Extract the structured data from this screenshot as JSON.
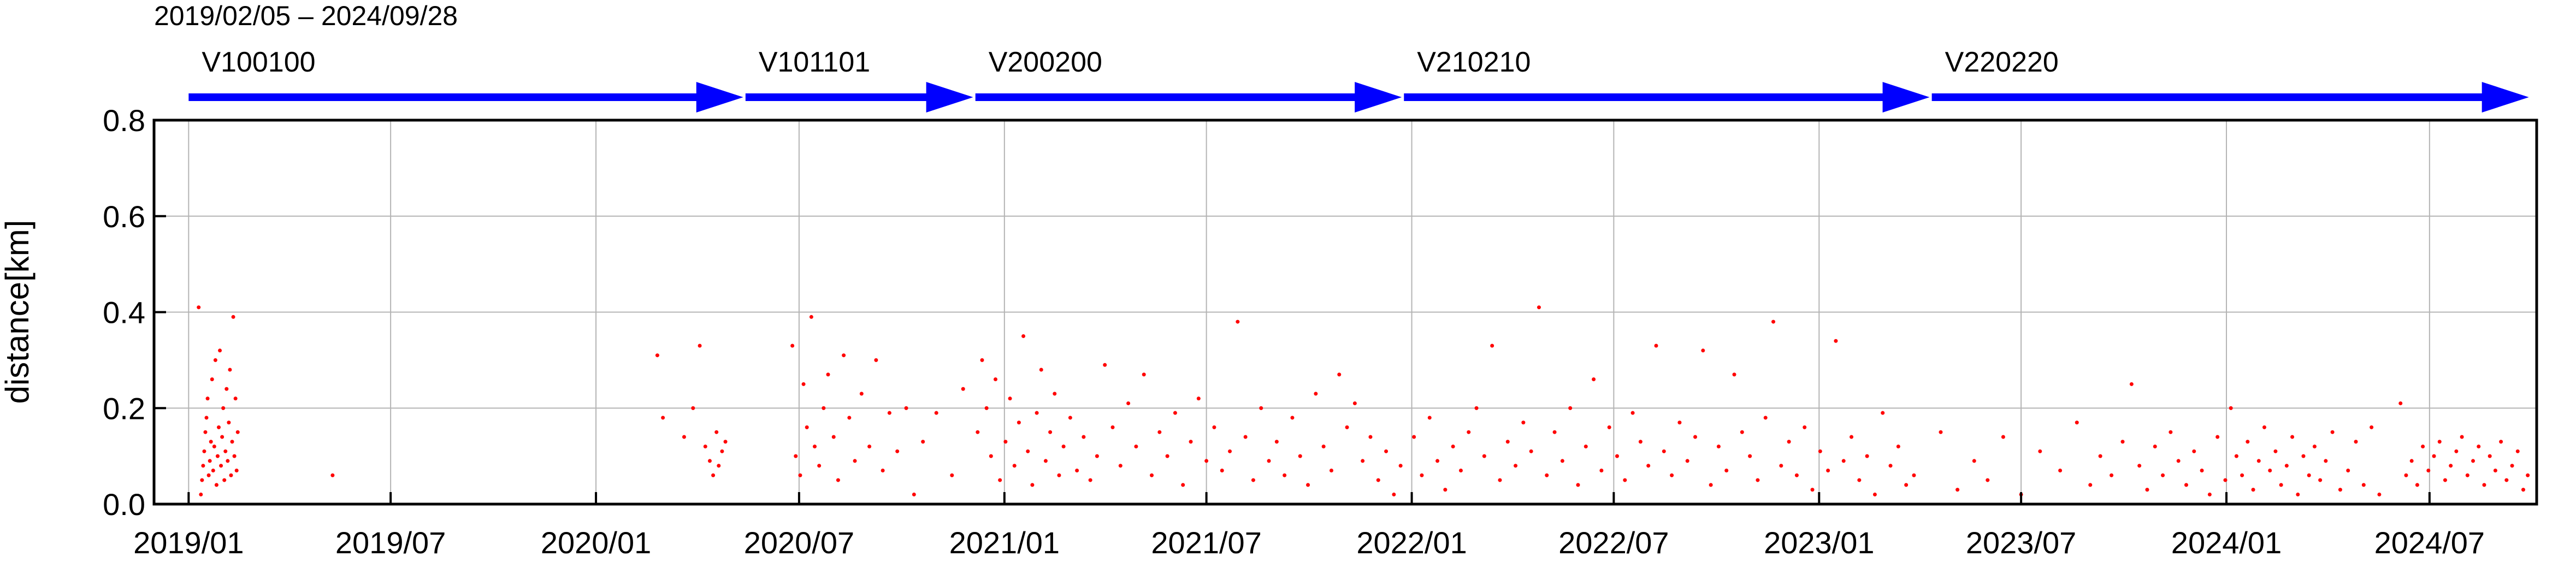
{
  "header": {
    "period": "2019/02/05 – 2024/09/28"
  },
  "colors": {
    "points": "#ff0000",
    "arrows": "#0000ff",
    "grid": "#b4b4b4",
    "frame": "#000000"
  },
  "chart_data": {
    "type": "scatter",
    "ylabel": "distance[km]",
    "xlabel": "",
    "ylim": [
      0.0,
      0.8
    ],
    "xlim": [
      "2018-12-01",
      "2024-10-05"
    ],
    "grid": true,
    "yticks": [
      "0.0",
      "0.2",
      "0.4",
      "0.6",
      "0.8"
    ],
    "xticks": [
      {
        "date": "2019-01-01",
        "label": "2019/01"
      },
      {
        "date": "2019-07-01",
        "label": "2019/07"
      },
      {
        "date": "2020-01-01",
        "label": "2020/01"
      },
      {
        "date": "2020-07-01",
        "label": "2020/07"
      },
      {
        "date": "2021-01-01",
        "label": "2021/01"
      },
      {
        "date": "2021-07-01",
        "label": "2021/07"
      },
      {
        "date": "2022-01-01",
        "label": "2022/01"
      },
      {
        "date": "2022-07-01",
        "label": "2022/07"
      },
      {
        "date": "2023-01-01",
        "label": "2023/01"
      },
      {
        "date": "2023-07-01",
        "label": "2023/07"
      },
      {
        "date": "2024-01-01",
        "label": "2024/01"
      },
      {
        "date": "2024-07-01",
        "label": "2024/07"
      }
    ],
    "versions": [
      {
        "label": "V100100",
        "start": "2019-01-01",
        "end": "2020-05-12"
      },
      {
        "label": "V101101",
        "start": "2020-05-14",
        "end": "2020-12-04"
      },
      {
        "label": "V200200",
        "start": "2020-12-06",
        "end": "2021-12-23"
      },
      {
        "label": "V210210",
        "start": "2021-12-25",
        "end": "2023-04-10"
      },
      {
        "label": "V220220",
        "start": "2023-04-12",
        "end": "2024-09-28"
      }
    ],
    "points": [
      {
        "x": "2019-01-10",
        "y": 0.41
      },
      {
        "x": "2019-01-12",
        "y": 0.02
      },
      {
        "x": "2019-01-13",
        "y": 0.05
      },
      {
        "x": "2019-01-14",
        "y": 0.08
      },
      {
        "x": "2019-01-15",
        "y": 0.11
      },
      {
        "x": "2019-01-16",
        "y": 0.15
      },
      {
        "x": "2019-01-17",
        "y": 0.18
      },
      {
        "x": "2019-01-18",
        "y": 0.22
      },
      {
        "x": "2019-01-19",
        "y": 0.06
      },
      {
        "x": "2019-01-20",
        "y": 0.09
      },
      {
        "x": "2019-01-21",
        "y": 0.13
      },
      {
        "x": "2019-01-22",
        "y": 0.26
      },
      {
        "x": "2019-01-23",
        "y": 0.07
      },
      {
        "x": "2019-01-24",
        "y": 0.12
      },
      {
        "x": "2019-01-25",
        "y": 0.3
      },
      {
        "x": "2019-01-26",
        "y": 0.04
      },
      {
        "x": "2019-01-27",
        "y": 0.1
      },
      {
        "x": "2019-01-28",
        "y": 0.16
      },
      {
        "x": "2019-01-29",
        "y": 0.32
      },
      {
        "x": "2019-01-30",
        "y": 0.08
      },
      {
        "x": "2019-01-31",
        "y": 0.14
      },
      {
        "x": "2019-02-01",
        "y": 0.2
      },
      {
        "x": "2019-02-02",
        "y": 0.05
      },
      {
        "x": "2019-02-03",
        "y": 0.11
      },
      {
        "x": "2019-02-04",
        "y": 0.24
      },
      {
        "x": "2019-02-05",
        "y": 0.09
      },
      {
        "x": "2019-02-06",
        "y": 0.17
      },
      {
        "x": "2019-02-07",
        "y": 0.28
      },
      {
        "x": "2019-02-08",
        "y": 0.06
      },
      {
        "x": "2019-02-09",
        "y": 0.13
      },
      {
        "x": "2019-02-10",
        "y": 0.39
      },
      {
        "x": "2019-02-11",
        "y": 0.1
      },
      {
        "x": "2019-02-12",
        "y": 0.22
      },
      {
        "x": "2019-02-13",
        "y": 0.07
      },
      {
        "x": "2019-02-14",
        "y": 0.15
      },
      {
        "x": "2019-05-10",
        "y": 0.06
      },
      {
        "x": "2020-02-25",
        "y": 0.31
      },
      {
        "x": "2020-03-01",
        "y": 0.18
      },
      {
        "x": "2020-03-20",
        "y": 0.14
      },
      {
        "x": "2020-03-28",
        "y": 0.2
      },
      {
        "x": "2020-04-03",
        "y": 0.33
      },
      {
        "x": "2020-04-08",
        "y": 0.12
      },
      {
        "x": "2020-04-12",
        "y": 0.09
      },
      {
        "x": "2020-04-15",
        "y": 0.06
      },
      {
        "x": "2020-04-18",
        "y": 0.15
      },
      {
        "x": "2020-04-20",
        "y": 0.08
      },
      {
        "x": "2020-04-23",
        "y": 0.11
      },
      {
        "x": "2020-04-26",
        "y": 0.13
      },
      {
        "x": "2020-06-25",
        "y": 0.33
      },
      {
        "x": "2020-06-28",
        "y": 0.1
      },
      {
        "x": "2020-07-02",
        "y": 0.06
      },
      {
        "x": "2020-07-05",
        "y": 0.25
      },
      {
        "x": "2020-07-08",
        "y": 0.16
      },
      {
        "x": "2020-07-12",
        "y": 0.39
      },
      {
        "x": "2020-07-15",
        "y": 0.12
      },
      {
        "x": "2020-07-19",
        "y": 0.08
      },
      {
        "x": "2020-07-23",
        "y": 0.2
      },
      {
        "x": "2020-07-27",
        "y": 0.27
      },
      {
        "x": "2020-08-01",
        "y": 0.14
      },
      {
        "x": "2020-08-05",
        "y": 0.05
      },
      {
        "x": "2020-08-10",
        "y": 0.31
      },
      {
        "x": "2020-08-15",
        "y": 0.18
      },
      {
        "x": "2020-08-20",
        "y": 0.09
      },
      {
        "x": "2020-08-26",
        "y": 0.23
      },
      {
        "x": "2020-09-02",
        "y": 0.12
      },
      {
        "x": "2020-09-08",
        "y": 0.3
      },
      {
        "x": "2020-09-14",
        "y": 0.07
      },
      {
        "x": "2020-09-20",
        "y": 0.19
      },
      {
        "x": "2020-09-27",
        "y": 0.11
      },
      {
        "x": "2020-10-05",
        "y": 0.2
      },
      {
        "x": "2020-10-12",
        "y": 0.02
      },
      {
        "x": "2020-10-20",
        "y": 0.13
      },
      {
        "x": "2020-11-01",
        "y": 0.19
      },
      {
        "x": "2020-11-15",
        "y": 0.06
      },
      {
        "x": "2020-11-25",
        "y": 0.24
      },
      {
        "x": "2020-12-08",
        "y": 0.15
      },
      {
        "x": "2020-12-12",
        "y": 0.3
      },
      {
        "x": "2020-12-16",
        "y": 0.2
      },
      {
        "x": "2020-12-20",
        "y": 0.1
      },
      {
        "x": "2020-12-24",
        "y": 0.26
      },
      {
        "x": "2020-12-28",
        "y": 0.05
      },
      {
        "x": "2021-01-02",
        "y": 0.13
      },
      {
        "x": "2021-01-06",
        "y": 0.22
      },
      {
        "x": "2021-01-10",
        "y": 0.08
      },
      {
        "x": "2021-01-14",
        "y": 0.17
      },
      {
        "x": "2021-01-18",
        "y": 0.35
      },
      {
        "x": "2021-01-22",
        "y": 0.11
      },
      {
        "x": "2021-01-26",
        "y": 0.04
      },
      {
        "x": "2021-01-30",
        "y": 0.19
      },
      {
        "x": "2021-02-03",
        "y": 0.28
      },
      {
        "x": "2021-02-07",
        "y": 0.09
      },
      {
        "x": "2021-02-11",
        "y": 0.15
      },
      {
        "x": "2021-02-15",
        "y": 0.23
      },
      {
        "x": "2021-02-19",
        "y": 0.06
      },
      {
        "x": "2021-02-23",
        "y": 0.12
      },
      {
        "x": "2021-03-01",
        "y": 0.18
      },
      {
        "x": "2021-03-07",
        "y": 0.07
      },
      {
        "x": "2021-03-13",
        "y": 0.14
      },
      {
        "x": "2021-03-19",
        "y": 0.05
      },
      {
        "x": "2021-03-25",
        "y": 0.1
      },
      {
        "x": "2021-04-01",
        "y": 0.29
      },
      {
        "x": "2021-04-08",
        "y": 0.16
      },
      {
        "x": "2021-04-15",
        "y": 0.08
      },
      {
        "x": "2021-04-22",
        "y": 0.21
      },
      {
        "x": "2021-04-29",
        "y": 0.12
      },
      {
        "x": "2021-05-06",
        "y": 0.27
      },
      {
        "x": "2021-05-13",
        "y": 0.06
      },
      {
        "x": "2021-05-20",
        "y": 0.15
      },
      {
        "x": "2021-05-27",
        "y": 0.1
      },
      {
        "x": "2021-06-03",
        "y": 0.19
      },
      {
        "x": "2021-06-10",
        "y": 0.04
      },
      {
        "x": "2021-06-17",
        "y": 0.13
      },
      {
        "x": "2021-06-24",
        "y": 0.22
      },
      {
        "x": "2021-07-01",
        "y": 0.09
      },
      {
        "x": "2021-07-08",
        "y": 0.16
      },
      {
        "x": "2021-07-15",
        "y": 0.07
      },
      {
        "x": "2021-07-22",
        "y": 0.11
      },
      {
        "x": "2021-07-29",
        "y": 0.38
      },
      {
        "x": "2021-08-05",
        "y": 0.14
      },
      {
        "x": "2021-08-12",
        "y": 0.05
      },
      {
        "x": "2021-08-19",
        "y": 0.2
      },
      {
        "x": "2021-08-26",
        "y": 0.09
      },
      {
        "x": "2021-09-02",
        "y": 0.13
      },
      {
        "x": "2021-09-09",
        "y": 0.06
      },
      {
        "x": "2021-09-16",
        "y": 0.18
      },
      {
        "x": "2021-09-23",
        "y": 0.1
      },
      {
        "x": "2021-09-30",
        "y": 0.04
      },
      {
        "x": "2021-10-07",
        "y": 0.23
      },
      {
        "x": "2021-10-14",
        "y": 0.12
      },
      {
        "x": "2021-10-21",
        "y": 0.07
      },
      {
        "x": "2021-10-28",
        "y": 0.27
      },
      {
        "x": "2021-11-04",
        "y": 0.16
      },
      {
        "x": "2021-11-11",
        "y": 0.21
      },
      {
        "x": "2021-11-18",
        "y": 0.09
      },
      {
        "x": "2021-11-25",
        "y": 0.14
      },
      {
        "x": "2021-12-02",
        "y": 0.05
      },
      {
        "x": "2021-12-09",
        "y": 0.11
      },
      {
        "x": "2021-12-16",
        "y": 0.02
      },
      {
        "x": "2021-12-22",
        "y": 0.08
      },
      {
        "x": "2022-01-03",
        "y": 0.14
      },
      {
        "x": "2022-01-10",
        "y": 0.06
      },
      {
        "x": "2022-01-17",
        "y": 0.18
      },
      {
        "x": "2022-01-24",
        "y": 0.09
      },
      {
        "x": "2022-01-31",
        "y": 0.03
      },
      {
        "x": "2022-02-07",
        "y": 0.12
      },
      {
        "x": "2022-02-14",
        "y": 0.07
      },
      {
        "x": "2022-02-21",
        "y": 0.15
      },
      {
        "x": "2022-02-28",
        "y": 0.2
      },
      {
        "x": "2022-03-07",
        "y": 0.1
      },
      {
        "x": "2022-03-14",
        "y": 0.33
      },
      {
        "x": "2022-03-21",
        "y": 0.05
      },
      {
        "x": "2022-03-28",
        "y": 0.13
      },
      {
        "x": "2022-04-04",
        "y": 0.08
      },
      {
        "x": "2022-04-11",
        "y": 0.17
      },
      {
        "x": "2022-04-18",
        "y": 0.11
      },
      {
        "x": "2022-04-25",
        "y": 0.41
      },
      {
        "x": "2022-05-02",
        "y": 0.06
      },
      {
        "x": "2022-05-09",
        "y": 0.15
      },
      {
        "x": "2022-05-16",
        "y": 0.09
      },
      {
        "x": "2022-05-23",
        "y": 0.2
      },
      {
        "x": "2022-05-30",
        "y": 0.04
      },
      {
        "x": "2022-06-06",
        "y": 0.12
      },
      {
        "x": "2022-06-13",
        "y": 0.26
      },
      {
        "x": "2022-06-20",
        "y": 0.07
      },
      {
        "x": "2022-06-27",
        "y": 0.16
      },
      {
        "x": "2022-07-04",
        "y": 0.1
      },
      {
        "x": "2022-07-11",
        "y": 0.05
      },
      {
        "x": "2022-07-18",
        "y": 0.19
      },
      {
        "x": "2022-07-25",
        "y": 0.13
      },
      {
        "x": "2022-08-01",
        "y": 0.08
      },
      {
        "x": "2022-08-08",
        "y": 0.33
      },
      {
        "x": "2022-08-15",
        "y": 0.11
      },
      {
        "x": "2022-08-22",
        "y": 0.06
      },
      {
        "x": "2022-08-29",
        "y": 0.17
      },
      {
        "x": "2022-09-05",
        "y": 0.09
      },
      {
        "x": "2022-09-12",
        "y": 0.14
      },
      {
        "x": "2022-09-19",
        "y": 0.32
      },
      {
        "x": "2022-09-26",
        "y": 0.04
      },
      {
        "x": "2022-10-03",
        "y": 0.12
      },
      {
        "x": "2022-10-10",
        "y": 0.07
      },
      {
        "x": "2022-10-17",
        "y": 0.27
      },
      {
        "x": "2022-10-24",
        "y": 0.15
      },
      {
        "x": "2022-10-31",
        "y": 0.1
      },
      {
        "x": "2022-11-07",
        "y": 0.05
      },
      {
        "x": "2022-11-14",
        "y": 0.18
      },
      {
        "x": "2022-11-21",
        "y": 0.38
      },
      {
        "x": "2022-11-28",
        "y": 0.08
      },
      {
        "x": "2022-12-05",
        "y": 0.13
      },
      {
        "x": "2022-12-12",
        "y": 0.06
      },
      {
        "x": "2022-12-19",
        "y": 0.16
      },
      {
        "x": "2022-12-26",
        "y": 0.03
      },
      {
        "x": "2023-01-02",
        "y": 0.11
      },
      {
        "x": "2023-01-09",
        "y": 0.07
      },
      {
        "x": "2023-01-16",
        "y": 0.34
      },
      {
        "x": "2023-01-23",
        "y": 0.09
      },
      {
        "x": "2023-01-30",
        "y": 0.14
      },
      {
        "x": "2023-02-06",
        "y": 0.05
      },
      {
        "x": "2023-02-13",
        "y": 0.1
      },
      {
        "x": "2023-02-20",
        "y": 0.02
      },
      {
        "x": "2023-02-27",
        "y": 0.19
      },
      {
        "x": "2023-03-06",
        "y": 0.08
      },
      {
        "x": "2023-03-13",
        "y": 0.12
      },
      {
        "x": "2023-03-20",
        "y": 0.04
      },
      {
        "x": "2023-03-27",
        "y": 0.06
      },
      {
        "x": "2023-04-20",
        "y": 0.15
      },
      {
        "x": "2023-05-05",
        "y": 0.03
      },
      {
        "x": "2023-05-20",
        "y": 0.09
      },
      {
        "x": "2023-06-01",
        "y": 0.05
      },
      {
        "x": "2023-06-15",
        "y": 0.14
      },
      {
        "x": "2023-07-01",
        "y": 0.02
      },
      {
        "x": "2023-07-18",
        "y": 0.11
      },
      {
        "x": "2023-08-05",
        "y": 0.07
      },
      {
        "x": "2023-08-20",
        "y": 0.17
      },
      {
        "x": "2023-09-01",
        "y": 0.04
      },
      {
        "x": "2023-09-10",
        "y": 0.1
      },
      {
        "x": "2023-09-20",
        "y": 0.06
      },
      {
        "x": "2023-09-30",
        "y": 0.13
      },
      {
        "x": "2023-10-08",
        "y": 0.25
      },
      {
        "x": "2023-10-15",
        "y": 0.08
      },
      {
        "x": "2023-10-22",
        "y": 0.03
      },
      {
        "x": "2023-10-29",
        "y": 0.12
      },
      {
        "x": "2023-11-05",
        "y": 0.06
      },
      {
        "x": "2023-11-12",
        "y": 0.15
      },
      {
        "x": "2023-11-19",
        "y": 0.09
      },
      {
        "x": "2023-11-26",
        "y": 0.04
      },
      {
        "x": "2023-12-03",
        "y": 0.11
      },
      {
        "x": "2023-12-10",
        "y": 0.07
      },
      {
        "x": "2023-12-17",
        "y": 0.02
      },
      {
        "x": "2023-12-24",
        "y": 0.14
      },
      {
        "x": "2023-12-31",
        "y": 0.05
      },
      {
        "x": "2024-01-05",
        "y": 0.2
      },
      {
        "x": "2024-01-10",
        "y": 0.1
      },
      {
        "x": "2024-01-15",
        "y": 0.06
      },
      {
        "x": "2024-01-20",
        "y": 0.13
      },
      {
        "x": "2024-01-25",
        "y": 0.03
      },
      {
        "x": "2024-01-30",
        "y": 0.09
      },
      {
        "x": "2024-02-04",
        "y": 0.16
      },
      {
        "x": "2024-02-09",
        "y": 0.07
      },
      {
        "x": "2024-02-14",
        "y": 0.11
      },
      {
        "x": "2024-02-19",
        "y": 0.04
      },
      {
        "x": "2024-02-24",
        "y": 0.08
      },
      {
        "x": "2024-02-29",
        "y": 0.14
      },
      {
        "x": "2024-03-05",
        "y": 0.02
      },
      {
        "x": "2024-03-10",
        "y": 0.1
      },
      {
        "x": "2024-03-15",
        "y": 0.06
      },
      {
        "x": "2024-03-20",
        "y": 0.12
      },
      {
        "x": "2024-03-25",
        "y": 0.05
      },
      {
        "x": "2024-03-30",
        "y": 0.09
      },
      {
        "x": "2024-04-05",
        "y": 0.15
      },
      {
        "x": "2024-04-12",
        "y": 0.03
      },
      {
        "x": "2024-04-19",
        "y": 0.07
      },
      {
        "x": "2024-04-26",
        "y": 0.13
      },
      {
        "x": "2024-05-03",
        "y": 0.04
      },
      {
        "x": "2024-05-10",
        "y": 0.16
      },
      {
        "x": "2024-05-17",
        "y": 0.02
      },
      {
        "x": "2024-06-05",
        "y": 0.21
      },
      {
        "x": "2024-06-10",
        "y": 0.06
      },
      {
        "x": "2024-06-15",
        "y": 0.09
      },
      {
        "x": "2024-06-20",
        "y": 0.04
      },
      {
        "x": "2024-06-25",
        "y": 0.12
      },
      {
        "x": "2024-06-30",
        "y": 0.07
      },
      {
        "x": "2024-07-05",
        "y": 0.1
      },
      {
        "x": "2024-07-10",
        "y": 0.13
      },
      {
        "x": "2024-07-15",
        "y": 0.05
      },
      {
        "x": "2024-07-20",
        "y": 0.08
      },
      {
        "x": "2024-07-25",
        "y": 0.11
      },
      {
        "x": "2024-07-30",
        "y": 0.14
      },
      {
        "x": "2024-08-04",
        "y": 0.06
      },
      {
        "x": "2024-08-09",
        "y": 0.09
      },
      {
        "x": "2024-08-14",
        "y": 0.12
      },
      {
        "x": "2024-08-19",
        "y": 0.04
      },
      {
        "x": "2024-08-24",
        "y": 0.1
      },
      {
        "x": "2024-08-29",
        "y": 0.07
      },
      {
        "x": "2024-09-03",
        "y": 0.13
      },
      {
        "x": "2024-09-08",
        "y": 0.05
      },
      {
        "x": "2024-09-13",
        "y": 0.08
      },
      {
        "x": "2024-09-18",
        "y": 0.11
      },
      {
        "x": "2024-09-23",
        "y": 0.03
      },
      {
        "x": "2024-09-27",
        "y": 0.06
      }
    ]
  }
}
